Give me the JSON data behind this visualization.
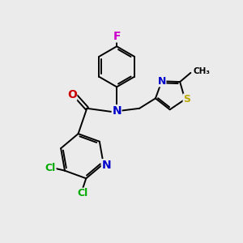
{
  "bg_color": "#ebebeb",
  "atom_colors": {
    "C": "#000000",
    "N": "#0000cc",
    "O": "#cc0000",
    "F": "#cc00cc",
    "Cl": "#00aa00",
    "S": "#bbaa00"
  },
  "font_size": 9,
  "line_width": 1.4,
  "fig_bg": "#ebebeb"
}
